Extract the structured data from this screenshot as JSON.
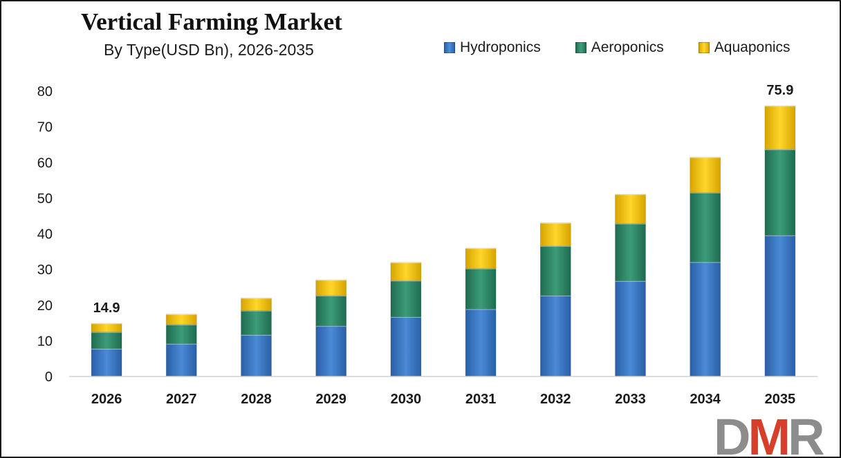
{
  "header": {
    "title": "Vertical Farming Market",
    "subtitle": "By Type(USD Bn), 2026-2035"
  },
  "legend": [
    {
      "label": "Hydroponics",
      "color": "#3a78c9"
    },
    {
      "label": "Aeroponics",
      "color": "#2e8b6a"
    },
    {
      "label": "Aquaponics",
      "color": "#f2c200"
    }
  ],
  "logo": {
    "text": "DMR",
    "colors": {
      "D": "#8c8c8c",
      "M": "#d6402a",
      "R": "#8c8c8c"
    }
  },
  "chart_data": {
    "type": "bar",
    "stacked": true,
    "categories": [
      "2026",
      "2027",
      "2028",
      "2029",
      "2030",
      "2031",
      "2032",
      "2033",
      "2034",
      "2035"
    ],
    "series": [
      {
        "name": "Hydroponics",
        "color": "#3a78c9",
        "values": [
          7.8,
          9.2,
          11.7,
          14.2,
          16.7,
          18.9,
          22.7,
          26.8,
          32.1,
          39.6
        ]
      },
      {
        "name": "Aeroponics",
        "color": "#2e8b6a",
        "values": [
          4.7,
          5.4,
          6.8,
          8.5,
          10.2,
          11.4,
          13.9,
          16.1,
          19.5,
          24.1
        ]
      },
      {
        "name": "Aquaponics",
        "color": "#f2c200",
        "values": [
          2.4,
          2.9,
          3.5,
          4.4,
          5.1,
          5.7,
          6.5,
          8.2,
          9.9,
          12.2
        ]
      }
    ],
    "data_labels": [
      {
        "category": "2026",
        "text": "14.9"
      },
      {
        "category": "2035",
        "text": "75.9"
      }
    ],
    "ylim": [
      0,
      80
    ],
    "yticks": [
      "0",
      "10",
      "20",
      "30",
      "40",
      "50",
      "60",
      "70",
      "80"
    ],
    "grid": false,
    "legend_position": "top-right"
  }
}
